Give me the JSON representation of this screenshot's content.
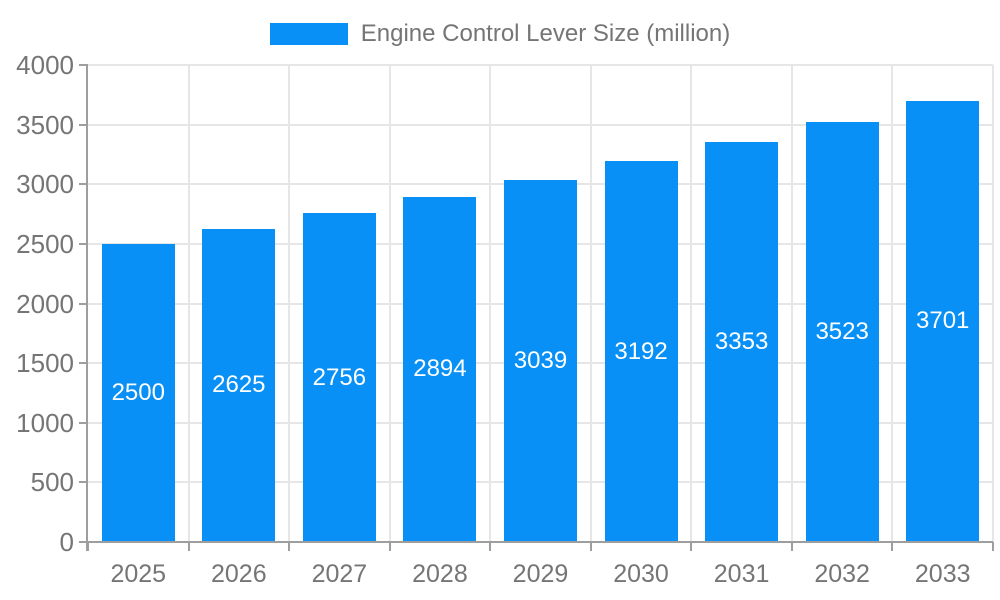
{
  "chart_data": {
    "type": "bar",
    "title": "Engine Control Lever Size (million)",
    "legend": [
      "Engine Control Lever Size (million)"
    ],
    "legend_position": "top",
    "categories": [
      "2025",
      "2026",
      "2027",
      "2028",
      "2029",
      "2030",
      "2031",
      "2032",
      "2033"
    ],
    "values": [
      2500,
      2625,
      2756,
      2894,
      3039,
      3192,
      3353,
      3523,
      3701
    ],
    "xlabel": "",
    "ylabel": "",
    "ylim": [
      0,
      4000
    ],
    "yticks": [
      0,
      500,
      1000,
      1500,
      2000,
      2500,
      3000,
      3500,
      4000
    ],
    "grid": true,
    "bar_labels_inside": true,
    "colors": {
      "bar": "#0890f6",
      "bar_label": "#ffffff",
      "axis_text": "#757575",
      "legend_text": "#757575",
      "gridline": "#e6e6e6",
      "axis_line": "#9e9e9e",
      "background": "#ffffff"
    }
  }
}
